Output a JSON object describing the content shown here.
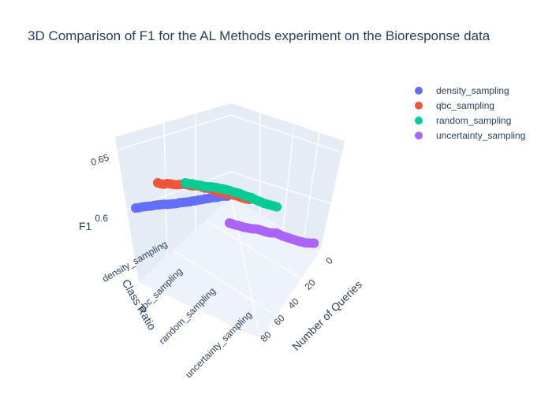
{
  "chart_data": {
    "type": "scatter3d",
    "title": "3D Comparison of F1 for the AL Methods experiment on the Bioresponse data",
    "axes": {
      "x": {
        "label": "Number of Queries",
        "ticks": [
          "0",
          "20",
          "40",
          "60",
          "80"
        ]
      },
      "y": {
        "label": "Class Ratio",
        "ticks": [
          "density_sampling",
          "qbc_sampling",
          "random_sampling",
          "uncertainty_sampling"
        ]
      },
      "z": {
        "label": "F1",
        "ticks": [
          "0.6",
          "0.65"
        ],
        "range": [
          0.58,
          0.66
        ]
      }
    },
    "grid": true,
    "legend_placement": "top-right",
    "series": [
      {
        "name": "density_sampling",
        "color": "#636efa",
        "f1": [
          0.596,
          0.596,
          0.597,
          0.597,
          0.597,
          0.597,
          0.598,
          0.598,
          0.598,
          0.598,
          0.597,
          0.597,
          0.597,
          0.597,
          0.598,
          0.598,
          0.598,
          0.598,
          0.599,
          0.599,
          0.6,
          0.6,
          0.601,
          0.601,
          0.602,
          0.602,
          0.602,
          0.603,
          0.603,
          0.602
        ]
      },
      {
        "name": "qbc_sampling",
        "color": "#ef553b",
        "f1": [
          0.616,
          0.614,
          0.614,
          0.616,
          0.616,
          0.615,
          0.615,
          0.616,
          0.617,
          0.617,
          0.616,
          0.615,
          0.616,
          0.616,
          0.614,
          0.612,
          0.612,
          0.61,
          0.608,
          0.606,
          0.605,
          0.604,
          0.603,
          0.603,
          0.601,
          0.6,
          0.598,
          0.596,
          0.595,
          0.594
        ]
      },
      {
        "name": "random_sampling",
        "color": "#00cc96",
        "f1": [
          0.613,
          0.612,
          0.613,
          0.612,
          0.612,
          0.612,
          0.611,
          0.611,
          0.612,
          0.612,
          0.612,
          0.611,
          0.611,
          0.61,
          0.609,
          0.608,
          0.607,
          0.606,
          0.604,
          0.602,
          0.601,
          0.6,
          0.597,
          0.595,
          0.593,
          0.591,
          0.59,
          0.589,
          0.588,
          0.587
        ]
      },
      {
        "name": "uncertainty_sampling",
        "color": "#ab63fa",
        "f1": [
          0.586,
          0.585,
          0.584,
          0.584,
          0.583,
          0.582,
          0.582,
          0.582,
          0.582,
          0.583,
          0.583,
          0.582,
          0.581,
          0.58,
          0.58,
          0.581,
          0.582,
          0.58,
          0.578,
          0.577,
          0.576,
          0.575,
          0.574,
          0.573,
          0.572,
          0.572,
          0.571,
          0.572,
          0.573,
          0.574
        ]
      }
    ]
  }
}
